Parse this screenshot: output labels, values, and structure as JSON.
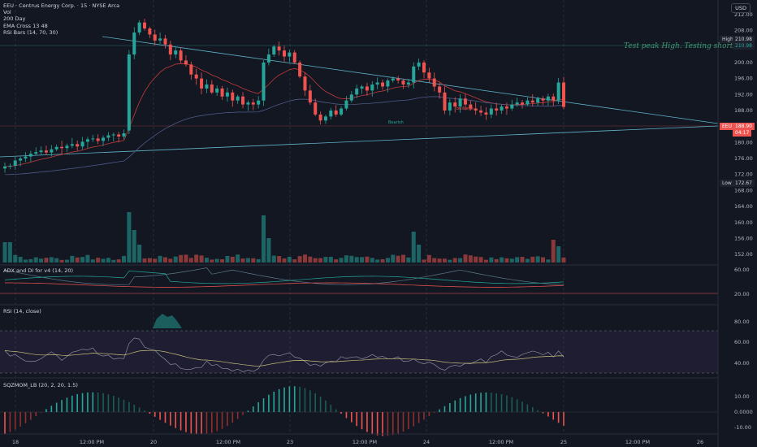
{
  "header": {
    "symbol_line": "EEU · Centrus Energy Corp. · 15 · NYSE Arca",
    "indicators": [
      "Vol",
      "200 Day",
      "EMA Cross 13 48",
      "RSI Bars (14, 70, 30)"
    ],
    "currency": "USD"
  },
  "annotations": {
    "note": "Test peak High. Testing shorts",
    "label_bearish": "Bearish",
    "label_red": "bullseye"
  },
  "price_axis": {
    "ticks": [
      "212.00",
      "208.00",
      "204.00",
      "200.00",
      "196.00",
      "192.00",
      "188.00",
      "184.00",
      "180.00",
      "176.00",
      "172.00",
      "168.00",
      "164.00",
      "160.00",
      "156.00",
      "152.00"
    ],
    "high_label": "High",
    "high_value": "210.98",
    "high_value2": "210.98",
    "eeu_label": "EEU",
    "current_value": "188.90",
    "current_sub": "04:17",
    "low_label": "Low",
    "low_value": "172.67"
  },
  "adx": {
    "title": "ADX and DI for v4 (14, 20)",
    "ticks": [
      "60.00",
      "20.00"
    ]
  },
  "rsi": {
    "title": "RSI (14, close)",
    "ticks": [
      "80.00",
      "60.00",
      "40.00"
    ]
  },
  "sqz": {
    "title": "SQZMOM_LB (20, 2, 20, 1.5)",
    "ticks": [
      "10.00",
      "0.0000",
      "-10.00"
    ]
  },
  "time_axis": {
    "labels": [
      "18",
      "12:00 PM",
      "20",
      "12:00 PM",
      "23",
      "12:00 PM",
      "24",
      "12:00 PM",
      "25",
      "12:00 PM",
      "26"
    ]
  },
  "colors": {
    "up": "#26a69a",
    "down": "#ef5350",
    "background": "#131722",
    "trend": "#5fb3c9",
    "ema_fast": "#c23b3b",
    "ema_slow": "#4e5a86"
  },
  "chart_data": {
    "type": "candlestick",
    "price_range": [
      150,
      214
    ],
    "days": [
      "18",
      "20",
      "23",
      "24",
      "25"
    ],
    "key_levels": {
      "high": 210.98,
      "low": 172.67,
      "last": 188.9
    },
    "closes": [
      174.0,
      174.2,
      175.5,
      176.0,
      176.5,
      177.2,
      177.6,
      178.0,
      177.5,
      178.3,
      178.9,
      178.6,
      179.2,
      179.6,
      179.0,
      180.2,
      180.8,
      181.0,
      180.4,
      181.2,
      181.8,
      182.0,
      181.5,
      182.3,
      202.0,
      207.5,
      210.0,
      208.5,
      207.0,
      205.5,
      206.0,
      204.5,
      202.0,
      203.0,
      200.5,
      199.5,
      197.0,
      196.0,
      193.5,
      194.5,
      192.5,
      193.5,
      191.5,
      192.5,
      190.5,
      191.5,
      189.5,
      190.0,
      189.5,
      190.5,
      200.0,
      202.0,
      204.0,
      203.0,
      201.5,
      202.5,
      200.0,
      196.5,
      193.0,
      190.0,
      187.0,
      185.5,
      186.5,
      188.0,
      187.0,
      188.5,
      190.5,
      192.0,
      193.5,
      194.0,
      193.0,
      194.5,
      195.0,
      194.0,
      195.5,
      196.0,
      195.5,
      194.5,
      195.0,
      199.0,
      200.0,
      197.5,
      196.0,
      194.0,
      192.5,
      188.0,
      190.0,
      189.0,
      191.0,
      189.5,
      188.5,
      188.0,
      187.5,
      187.0,
      188.5,
      188.0,
      189.0,
      188.5,
      189.5,
      190.0,
      189.5,
      190.5,
      190.0,
      191.0,
      190.5,
      191.5,
      190.5,
      195.0,
      188.9
    ]
  }
}
